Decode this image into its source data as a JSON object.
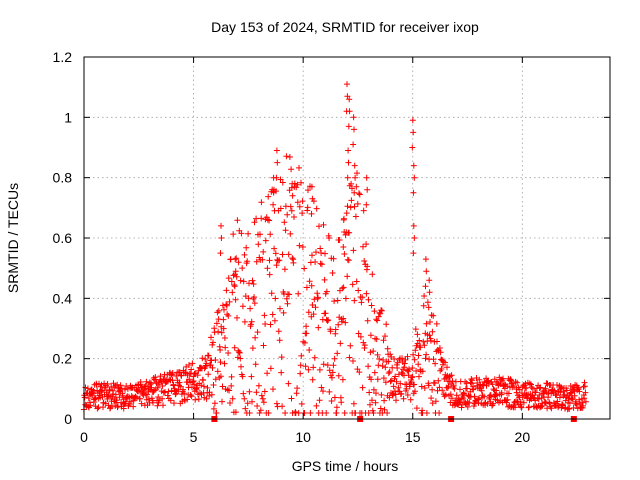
{
  "chart_data": {
    "type": "scatter",
    "title": "Day 153 of 2024, SRMTID for receiver ixop",
    "xlabel": "GPS time / hours",
    "ylabel": "SRMTID / TECUs",
    "xlim": [
      0,
      24
    ],
    "ylim": [
      0,
      1.2
    ],
    "xticks": [
      0,
      5,
      10,
      15,
      20
    ],
    "xtick_labels": [
      "0",
      "5",
      "10",
      "15",
      "20"
    ],
    "yticks": [
      0,
      0.2,
      0.4,
      0.6,
      0.8,
      1,
      1.2
    ],
    "ytick_labels": [
      "0",
      "0.2",
      "0.4",
      "0.6",
      "0.8",
      "1",
      "1.2"
    ],
    "grid": true,
    "marker": "+",
    "color": "#ff0000",
    "gap_marks_x": [
      5.95,
      12.6,
      16.75,
      22.35
    ],
    "envelope": [
      {
        "x": 0.0,
        "y": 0.07
      },
      {
        "x": 1.0,
        "y": 0.08
      },
      {
        "x": 2.0,
        "y": 0.07
      },
      {
        "x": 3.0,
        "y": 0.09
      },
      {
        "x": 4.0,
        "y": 0.1
      },
      {
        "x": 5.0,
        "y": 0.12
      },
      {
        "x": 6.0,
        "y": 0.16
      },
      {
        "x": 6.5,
        "y": 0.26
      },
      {
        "x": 7.0,
        "y": 0.32
      },
      {
        "x": 7.5,
        "y": 0.3
      },
      {
        "x": 8.0,
        "y": 0.34
      },
      {
        "x": 8.5,
        "y": 0.4
      },
      {
        "x": 9.0,
        "y": 0.4
      },
      {
        "x": 9.5,
        "y": 0.44
      },
      {
        "x": 10.0,
        "y": 0.38
      },
      {
        "x": 10.5,
        "y": 0.36
      },
      {
        "x": 11.0,
        "y": 0.3
      },
      {
        "x": 11.5,
        "y": 0.28
      },
      {
        "x": 12.0,
        "y": 0.36
      },
      {
        "x": 12.5,
        "y": 0.42
      },
      {
        "x": 13.0,
        "y": 0.26
      },
      {
        "x": 13.5,
        "y": 0.18
      },
      {
        "x": 14.0,
        "y": 0.14
      },
      {
        "x": 14.5,
        "y": 0.13
      },
      {
        "x": 15.0,
        "y": 0.14
      },
      {
        "x": 15.5,
        "y": 0.2
      },
      {
        "x": 16.0,
        "y": 0.18
      },
      {
        "x": 16.5,
        "y": 0.12
      },
      {
        "x": 17.0,
        "y": 0.08
      },
      {
        "x": 18.0,
        "y": 0.09
      },
      {
        "x": 19.0,
        "y": 0.09
      },
      {
        "x": 20.0,
        "y": 0.08
      },
      {
        "x": 21.0,
        "y": 0.08
      },
      {
        "x": 22.0,
        "y": 0.07
      },
      {
        "x": 22.9,
        "y": 0.08
      }
    ],
    "peaks": [
      {
        "x": 6.25,
        "y": 0.64
      },
      {
        "x": 6.9,
        "y": 0.53
      },
      {
        "x": 8.65,
        "y": 0.8
      },
      {
        "x": 8.8,
        "y": 0.89
      },
      {
        "x": 9.5,
        "y": 0.78
      },
      {
        "x": 10.4,
        "y": 0.77
      },
      {
        "x": 11.85,
        "y": 0.66
      },
      {
        "x": 12.0,
        "y": 1.11
      },
      {
        "x": 12.05,
        "y": 0.89
      },
      {
        "x": 12.1,
        "y": 1.06
      },
      {
        "x": 12.3,
        "y": 1.0
      },
      {
        "x": 12.35,
        "y": 0.84
      },
      {
        "x": 12.9,
        "y": 0.8
      },
      {
        "x": 15.0,
        "y": 0.99
      },
      {
        "x": 15.05,
        "y": 0.84
      },
      {
        "x": 15.05,
        "y": 0.64
      },
      {
        "x": 15.6,
        "y": 0.53
      },
      {
        "x": 15.75,
        "y": 0.46
      }
    ]
  }
}
